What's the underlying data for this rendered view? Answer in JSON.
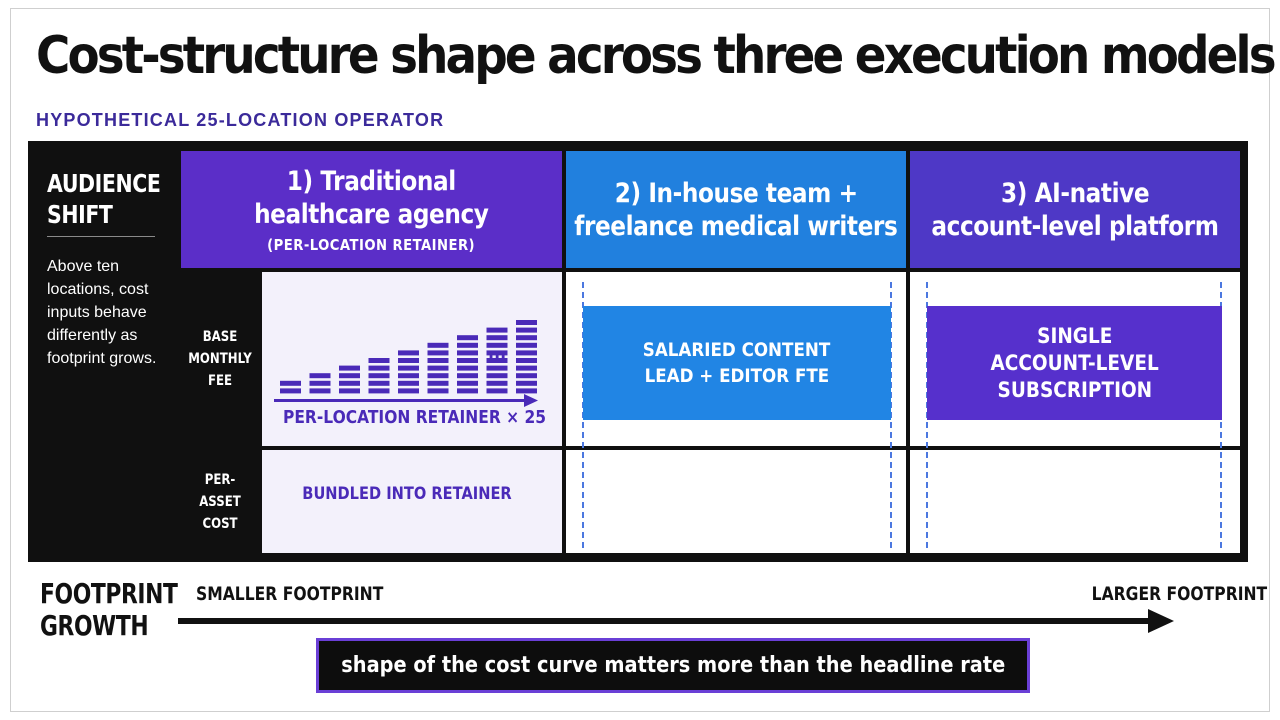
{
  "title": "Cost-structure shape across three execution models",
  "subtitle": "HYPOTHETICAL 25-LOCATION OPERATOR",
  "sidebar": {
    "title": "AUDIENCE SHIFT",
    "text": "Above ten locations, cost inputs behave differently as footprint grows."
  },
  "columns": [
    {
      "title": "1) Traditional healthcare agency",
      "subtitle": "(PER-LOCATION RETAINER)",
      "color": "#5b2ec8"
    },
    {
      "title": "2) In-house team + freelance medical writers",
      "color": "#2180de"
    },
    {
      "title": "3) AI-native account-level platform",
      "color": "#4e38c6"
    }
  ],
  "rows": {
    "base": "BASE MONTHLY FEE",
    "asset": "PER-ASSET COST"
  },
  "agency": {
    "retainer_label": "PER-LOCATION RETAINER × 25",
    "bundled_label": "BUNDLED INTO RETAINER",
    "ellipsis": "...",
    "bar_color": "#4a2ab8",
    "bar_stack_counts": [
      2,
      3,
      4,
      5,
      6,
      7,
      8,
      9,
      10
    ]
  },
  "inhouse": {
    "base_block": "SALARIED CONTENT LEAD + EDITOR FTE",
    "color": "#2185e4"
  },
  "platform": {
    "base_block": "SINGLE ACCOUNT-LEVEL SUBSCRIPTION",
    "color": "#5630cc"
  },
  "footer": {
    "title": "FOOTPRINT GROWTH",
    "smaller": "SMALLER FOOTPRINT",
    "larger": "LARGER FOOTPRINT",
    "callout": "shape of the cost curve matters more than the headline rate"
  }
}
